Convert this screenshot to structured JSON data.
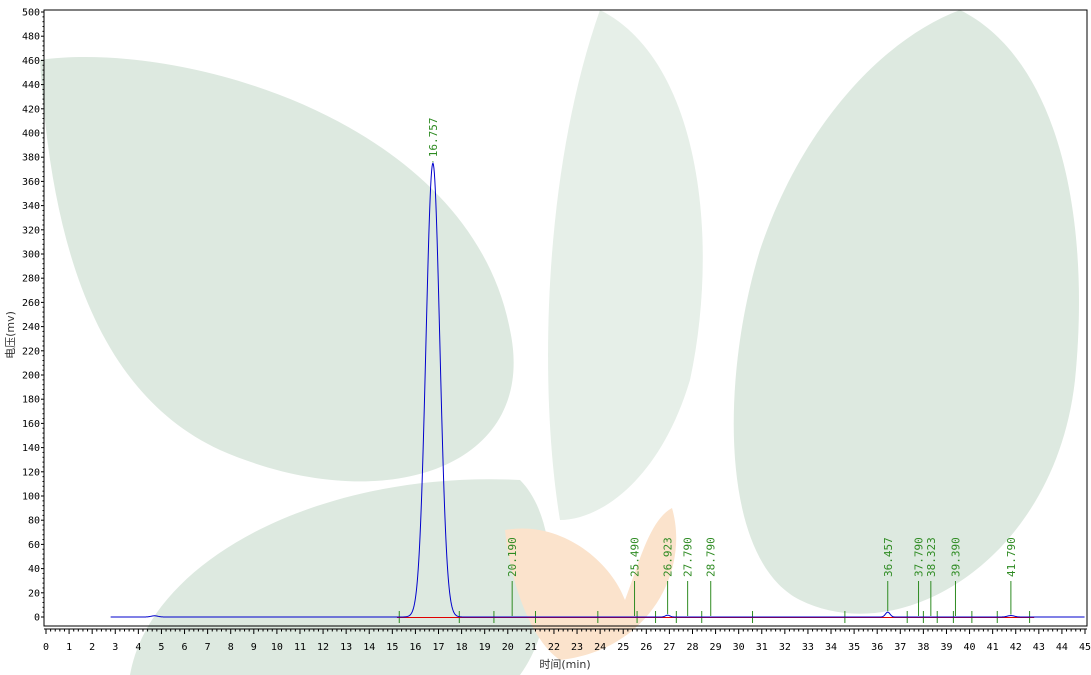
{
  "chart_data": {
    "type": "line",
    "title": "",
    "xlabel": "时间(min)",
    "ylabel": "电压(mv)",
    "xlim": [
      0,
      45
    ],
    "ylim": [
      -10,
      500
    ],
    "x_ticks": [
      0,
      1,
      2,
      3,
      4,
      5,
      6,
      7,
      8,
      9,
      10,
      11,
      12,
      13,
      14,
      15,
      16,
      17,
      18,
      19,
      20,
      21,
      22,
      23,
      24,
      25,
      26,
      27,
      28,
      29,
      30,
      31,
      32,
      33,
      34,
      35,
      36,
      37,
      38,
      39,
      40,
      41,
      42,
      43,
      44,
      45
    ],
    "y_ticks": [
      0,
      20,
      40,
      60,
      80,
      100,
      120,
      140,
      160,
      180,
      200,
      220,
      240,
      260,
      280,
      300,
      320,
      340,
      360,
      380,
      400,
      420,
      440,
      460,
      480,
      500
    ],
    "grid": false,
    "series": [
      {
        "color": "#0000cc",
        "peaks": [
          {
            "rt": 4.7,
            "height": 1.0,
            "sigma": 0.15
          },
          {
            "rt": 16.757,
            "height": 375,
            "sigma": 0.3
          },
          {
            "rt": 26.923,
            "height": 1.5,
            "sigma": 0.1
          },
          {
            "rt": 36.457,
            "height": 4,
            "sigma": 0.1
          },
          {
            "rt": 41.79,
            "height": 1.2,
            "sigma": 0.15
          }
        ],
        "x_range": [
          2.8,
          45
        ]
      }
    ],
    "baseline": {
      "color": "#e00000",
      "value": 0
    },
    "peak_labels": [
      {
        "rt": 16.757,
        "label": "16.757",
        "height": 375
      },
      {
        "rt": 20.19,
        "label": "20.190",
        "height": 0
      },
      {
        "rt": 25.49,
        "label": "25.490",
        "height": 0
      },
      {
        "rt": 26.923,
        "label": "26.923",
        "height": 1.5
      },
      {
        "rt": 27.79,
        "label": "27.790",
        "height": 0
      },
      {
        "rt": 28.79,
        "label": "28.790",
        "height": 0
      },
      {
        "rt": 36.457,
        "label": "36.457",
        "height": 4
      },
      {
        "rt": 37.79,
        "label": "37.790",
        "height": 0
      },
      {
        "rt": 38.323,
        "label": "38.323",
        "height": 0
      },
      {
        "rt": 39.39,
        "label": "39.390",
        "height": 0
      },
      {
        "rt": 41.79,
        "label": "41.790",
        "height": 1.2
      }
    ],
    "integration_marks": [
      15.3,
      17.9,
      19.4,
      21.2,
      23.9,
      25.6,
      26.4,
      27.3,
      28.4,
      30.6,
      34.6,
      37.3,
      38.0,
      38.6,
      39.3,
      40.1,
      41.2,
      42.6
    ],
    "colors": {
      "signal": "#0000cc",
      "baseline": "#e00000",
      "labels": "#2e8b22",
      "watermark_green": "#dce9df",
      "watermark_orange": "#fbe3cc"
    }
  }
}
